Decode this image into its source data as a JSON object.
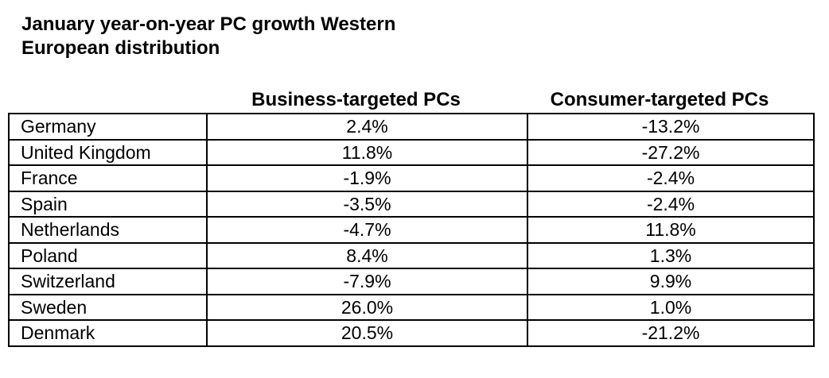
{
  "title_lines": [
    "January year-on-year PC growth Western",
    "European distribution"
  ],
  "chart_data": {
    "type": "table",
    "title": "January year-on-year PC growth Western European distribution",
    "columns": [
      "",
      "Business-targeted PCs",
      "Consumer-targeted PCs"
    ],
    "rows": [
      {
        "country": "Germany",
        "business": "2.4%",
        "consumer": "-13.2%"
      },
      {
        "country": "United Kingdom",
        "business": "11.8%",
        "consumer": "-27.2%"
      },
      {
        "country": "France",
        "business": "-1.9%",
        "consumer": "-2.4%"
      },
      {
        "country": "Spain",
        "business": "-3.5%",
        "consumer": "-2.4%"
      },
      {
        "country": "Netherlands",
        "business": "-4.7%",
        "consumer": "11.8%"
      },
      {
        "country": "Poland",
        "business": "8.4%",
        "consumer": "1.3%"
      },
      {
        "country": "Switzerland",
        "business": "-7.9%",
        "consumer": "9.9%"
      },
      {
        "country": "Sweden",
        "business": "26.0%",
        "consumer": "1.0%"
      },
      {
        "country": "Denmark",
        "business": "20.5%",
        "consumer": "-21.2%"
      }
    ]
  }
}
